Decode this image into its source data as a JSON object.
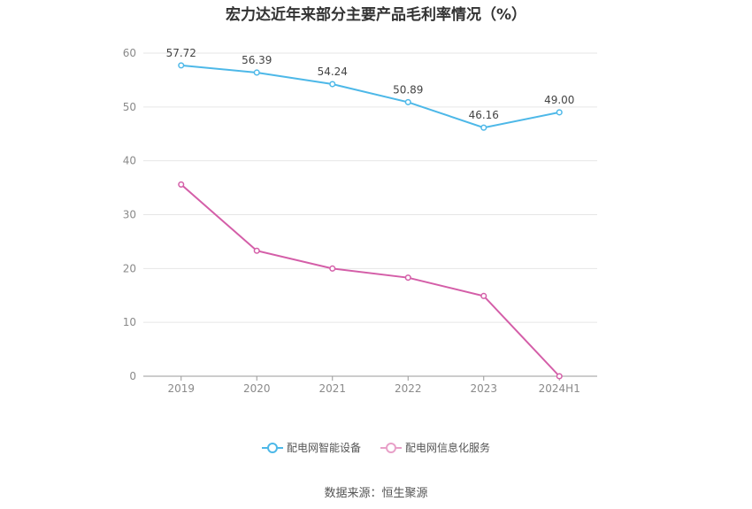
{
  "title": "宏力达近年来部分主要产品毛利率情况（%）",
  "source": "数据来源：恒生聚源",
  "chart_data": {
    "type": "line",
    "categories": [
      "2019",
      "2020",
      "2021",
      "2022",
      "2023",
      "2024H1"
    ],
    "y_ticks": [
      0,
      10,
      20,
      30,
      40,
      50,
      60
    ],
    "ylim": [
      0,
      60
    ],
    "grid": true,
    "legend_position": "bottom",
    "series": [
      {
        "name": "配电网智能设备",
        "color": "#4db8e8",
        "values": [
          57.72,
          56.39,
          54.24,
          50.89,
          46.16,
          49.0
        ],
        "data_labels": [
          "57.72",
          "56.39",
          "54.24",
          "50.89",
          "46.16",
          "49.00"
        ]
      },
      {
        "name": "配电网信息化服务",
        "color": "#d45ea8",
        "values": [
          35.6,
          23.3,
          20.0,
          18.3,
          14.9,
          0.0
        ],
        "data_labels": []
      }
    ]
  }
}
